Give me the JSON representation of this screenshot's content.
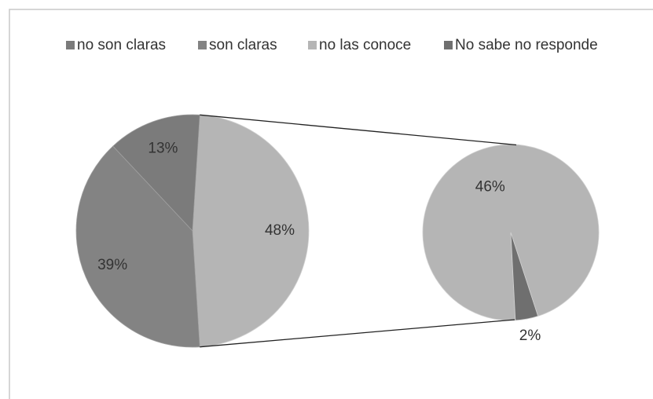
{
  "chart_data": {
    "type": "pie-of-pie",
    "categories": [
      "no son claras",
      "son claras",
      "no las conoce",
      "No sabe no responde"
    ],
    "values": [
      13,
      39,
      46,
      2
    ],
    "value_labels": [
      "13%",
      "39%",
      "46%",
      "2%"
    ],
    "colors": [
      "#7b7b7b",
      "#838383",
      "#b5b5b5",
      "#6f6f6f"
    ],
    "other_value": 48,
    "other_value_label": "48%",
    "legend": "top"
  }
}
